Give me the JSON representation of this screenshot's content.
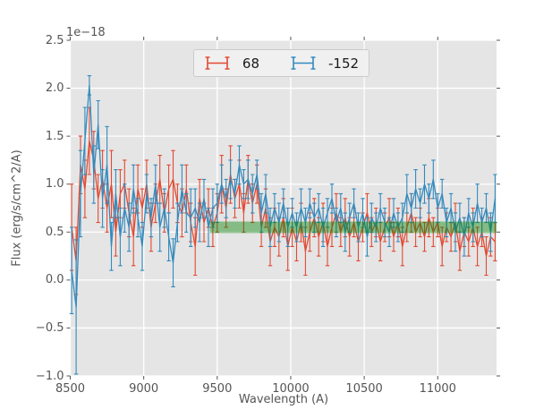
{
  "figure": {
    "background": "#ffffff",
    "plot_background": "#e5e5e5",
    "grid_color": "#ffffff",
    "tick_mark_color": "#555555",
    "label_color": "#555555",
    "legend_text_color": "#1a1a1a",
    "legend_background": "#f0f0f0"
  },
  "axes": {
    "x_label": "Wavelength (A)",
    "y_label": "Flux (erg/s/cm^2/A)",
    "offset_text": "1e−18",
    "x_ticks": [
      8500,
      9000,
      9500,
      10000,
      10500,
      11000
    ],
    "x_tick_labels": [
      "8500",
      "9000",
      "9500",
      "10000",
      "10500",
      "11000"
    ],
    "y_ticks": [
      -1.0,
      -0.5,
      0.0,
      0.5,
      1.0,
      1.5,
      2.0,
      2.5
    ],
    "y_tick_labels": [
      "−1.0",
      "−0.5",
      "0.0",
      "0.5",
      "1.0",
      "1.5",
      "2.0",
      "2.5"
    ]
  },
  "legend": {
    "entries": [
      {
        "label": "68",
        "color": "#e24a33",
        "marker": "errorbar-marker-icon"
      },
      {
        "label": "-152",
        "color": "#348abd",
        "marker": "errorbar-marker-icon"
      }
    ]
  },
  "chart_data": {
    "type": "line",
    "subtype": "errorbar-spectrum",
    "title": "",
    "xlabel": "Wavelength (A)",
    "ylabel": "Flux (erg/s/cm^2/A)",
    "y_scale_factor": "1e-18",
    "xlim": [
      8500,
      11400
    ],
    "ylim": [
      -1.0,
      2.5
    ],
    "grid": true,
    "legend_position": "upper center",
    "band": {
      "x_start": 9450,
      "x_end": 11400,
      "y_low": 0.49,
      "y_high": 0.61,
      "color": "#008000",
      "opacity": 0.42
    },
    "x": [
      8510,
      8540,
      8570,
      8600,
      8630,
      8660,
      8690,
      8720,
      8750,
      8780,
      8810,
      8840,
      8870,
      8900,
      8930,
      8960,
      8990,
      9020,
      9050,
      9080,
      9110,
      9140,
      9170,
      9200,
      9230,
      9260,
      9290,
      9320,
      9350,
      9380,
      9410,
      9440,
      9470,
      9500,
      9530,
      9560,
      9590,
      9620,
      9650,
      9680,
      9710,
      9740,
      9770,
      9800,
      9830,
      9860,
      9890,
      9920,
      9950,
      9980,
      10010,
      10040,
      10070,
      10100,
      10130,
      10160,
      10190,
      10220,
      10250,
      10280,
      10310,
      10340,
      10370,
      10400,
      10430,
      10460,
      10490,
      10520,
      10550,
      10580,
      10610,
      10640,
      10670,
      10700,
      10730,
      10760,
      10790,
      10820,
      10850,
      10880,
      10910,
      10940,
      10970,
      11000,
      11030,
      11060,
      11090,
      11120,
      11150,
      11180,
      11210,
      11240,
      11270,
      11300,
      11330,
      11360,
      11390
    ],
    "series": [
      {
        "name": "68",
        "color": "#e24a33",
        "values": [
          0.55,
          0.2,
          1.2,
          0.95,
          1.45,
          1.25,
          0.85,
          1.05,
          0.75,
          1.0,
          0.5,
          0.9,
          1.0,
          0.7,
          0.45,
          0.95,
          0.75,
          1.0,
          0.55,
          0.8,
          1.05,
          0.7,
          0.95,
          1.05,
          0.8,
          0.7,
          0.95,
          0.6,
          0.35,
          0.85,
          0.6,
          0.75,
          0.55,
          0.7,
          1.0,
          0.75,
          1.1,
          0.85,
          1.0,
          0.7,
          1.05,
          0.8,
          1.0,
          0.55,
          0.75,
          0.4,
          0.55,
          0.45,
          0.65,
          0.35,
          0.55,
          0.4,
          0.6,
          0.3,
          0.5,
          0.65,
          0.45,
          0.6,
          0.35,
          0.55,
          0.7,
          0.5,
          0.65,
          0.45,
          0.6,
          0.4,
          0.55,
          0.7,
          0.5,
          0.6,
          0.4,
          0.55,
          0.65,
          0.45,
          0.6,
          0.35,
          0.55,
          0.7,
          0.5,
          0.6,
          0.45,
          0.65,
          0.5,
          0.6,
          0.35,
          0.55,
          0.45,
          0.6,
          0.3,
          0.5,
          0.4,
          0.55,
          0.35,
          0.5,
          0.25,
          0.45,
          0.4
        ],
        "errors": [
          0.45,
          0.35,
          0.3,
          0.3,
          0.35,
          0.3,
          0.25,
          0.3,
          0.25,
          0.35,
          0.25,
          0.25,
          0.25,
          0.25,
          0.3,
          0.25,
          0.2,
          0.25,
          0.25,
          0.2,
          0.25,
          0.2,
          0.25,
          0.3,
          0.2,
          0.25,
          0.25,
          0.2,
          0.3,
          0.2,
          0.2,
          0.2,
          0.2,
          0.2,
          0.3,
          0.2,
          0.3,
          0.2,
          0.25,
          0.2,
          0.25,
          0.2,
          0.2,
          0.2,
          0.2,
          0.25,
          0.2,
          0.2,
          0.2,
          0.25,
          0.2,
          0.2,
          0.2,
          0.25,
          0.2,
          0.2,
          0.2,
          0.2,
          0.2,
          0.2,
          0.2,
          0.15,
          0.2,
          0.2,
          0.15,
          0.2,
          0.15,
          0.2,
          0.15,
          0.15,
          0.2,
          0.15,
          0.2,
          0.15,
          0.15,
          0.2,
          0.15,
          0.2,
          0.15,
          0.15,
          0.15,
          0.2,
          0.15,
          0.15,
          0.2,
          0.15,
          0.15,
          0.2,
          0.2,
          0.15,
          0.15,
          0.2,
          0.2,
          0.15,
          0.2,
          0.2,
          0.2
        ]
      },
      {
        "name": "-152",
        "color": "#348abd",
        "values": [
          0.1,
          -0.28,
          0.9,
          1.45,
          2.03,
          1.1,
          1.62,
          0.85,
          1.2,
          0.35,
          0.9,
          0.45,
          0.75,
          0.55,
          0.95,
          0.65,
          0.35,
          0.9,
          0.65,
          1.0,
          0.55,
          0.75,
          0.45,
          0.18,
          0.6,
          0.95,
          0.7,
          0.65,
          0.75,
          0.6,
          0.85,
          0.55,
          0.75,
          0.8,
          1.0,
          0.85,
          1.05,
          0.9,
          1.2,
          1.0,
          1.05,
          0.9,
          1.1,
          0.7,
          0.9,
          0.55,
          0.75,
          0.6,
          0.8,
          0.55,
          0.7,
          0.55,
          0.75,
          0.6,
          0.8,
          0.65,
          0.75,
          0.55,
          0.7,
          0.85,
          0.6,
          0.75,
          0.5,
          0.65,
          0.8,
          0.55,
          0.7,
          0.45,
          0.65,
          0.55,
          0.75,
          0.6,
          0.5,
          0.7,
          0.55,
          0.65,
          0.9,
          0.75,
          0.95,
          0.8,
          1.0,
          0.85,
          1.05,
          0.75,
          0.9,
          0.6,
          0.75,
          0.5,
          0.65,
          0.45,
          0.7,
          0.55,
          0.8,
          0.6,
          0.75,
          0.5,
          0.85
        ],
        "errors": [
          0.45,
          0.7,
          0.45,
          0.35,
          0.1,
          0.3,
          0.25,
          0.3,
          0.4,
          0.25,
          0.25,
          0.3,
          0.25,
          0.25,
          0.25,
          0.2,
          0.25,
          0.2,
          0.2,
          0.2,
          0.25,
          0.2,
          0.25,
          0.25,
          0.2,
          0.25,
          0.2,
          0.3,
          0.2,
          0.2,
          0.2,
          0.2,
          0.2,
          0.2,
          0.2,
          0.2,
          0.2,
          0.15,
          0.2,
          0.15,
          0.2,
          0.2,
          0.15,
          0.2,
          0.2,
          0.2,
          0.15,
          0.2,
          0.15,
          0.2,
          0.15,
          0.15,
          0.2,
          0.15,
          0.15,
          0.15,
          0.15,
          0.2,
          0.15,
          0.15,
          0.15,
          0.15,
          0.2,
          0.15,
          0.15,
          0.15,
          0.15,
          0.2,
          0.15,
          0.15,
          0.15,
          0.15,
          0.15,
          0.15,
          0.15,
          0.15,
          0.2,
          0.15,
          0.2,
          0.15,
          0.2,
          0.15,
          0.2,
          0.15,
          0.15,
          0.15,
          0.15,
          0.2,
          0.15,
          0.2,
          0.15,
          0.15,
          0.2,
          0.15,
          0.15,
          0.2,
          0.25
        ]
      }
    ]
  }
}
